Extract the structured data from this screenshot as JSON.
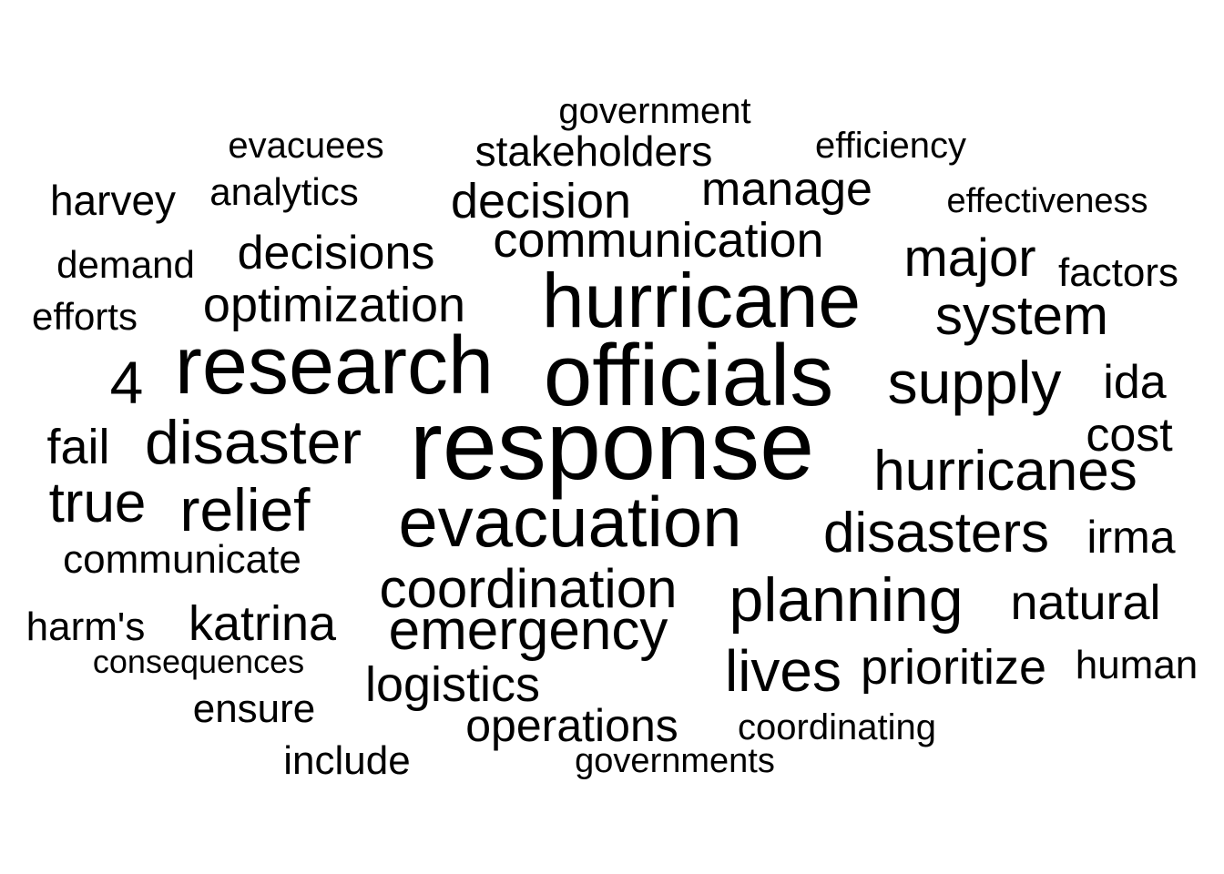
{
  "words": {
    "response": "response",
    "officials": "officials",
    "research": "research",
    "hurricane": "hurricane",
    "evacuation": "evacuation",
    "disaster": "disaster",
    "planning": "planning",
    "supply": "supply",
    "emergency": "emergency",
    "disasters": "disasters",
    "hurricanes": "hurricanes",
    "relief": "relief",
    "system": "system",
    "lives": "lives",
    "coordination": "coordination",
    "four": "4",
    "true": "true",
    "major": "major",
    "decision": "decision",
    "communication": "communication",
    "optimization": "optimization",
    "natural": "natural",
    "logistics": "logistics",
    "prioritize": "prioritize",
    "katrina": "katrina",
    "decisions": "decisions",
    "manage": "manage",
    "ida": "ida",
    "cost": "cost",
    "fail": "fail",
    "operations": "operations",
    "irma": "irma",
    "stakeholders": "stakeholders",
    "harvey": "harvey",
    "communicate": "communicate",
    "harms": "harm's",
    "factors": "factors",
    "human": "human",
    "ensure": "ensure",
    "include": "include",
    "analytics": "analytics",
    "demand": "demand",
    "efforts": "efforts",
    "efficiency": "efficiency",
    "government": "government",
    "evacuees": "evacuees",
    "coordinating": "coordinating",
    "governments": "governments",
    "effectiveness": "effectiveness",
    "consequences": "consequences"
  },
  "colors": {
    "background": "#ffffff",
    "text": "#000000"
  }
}
